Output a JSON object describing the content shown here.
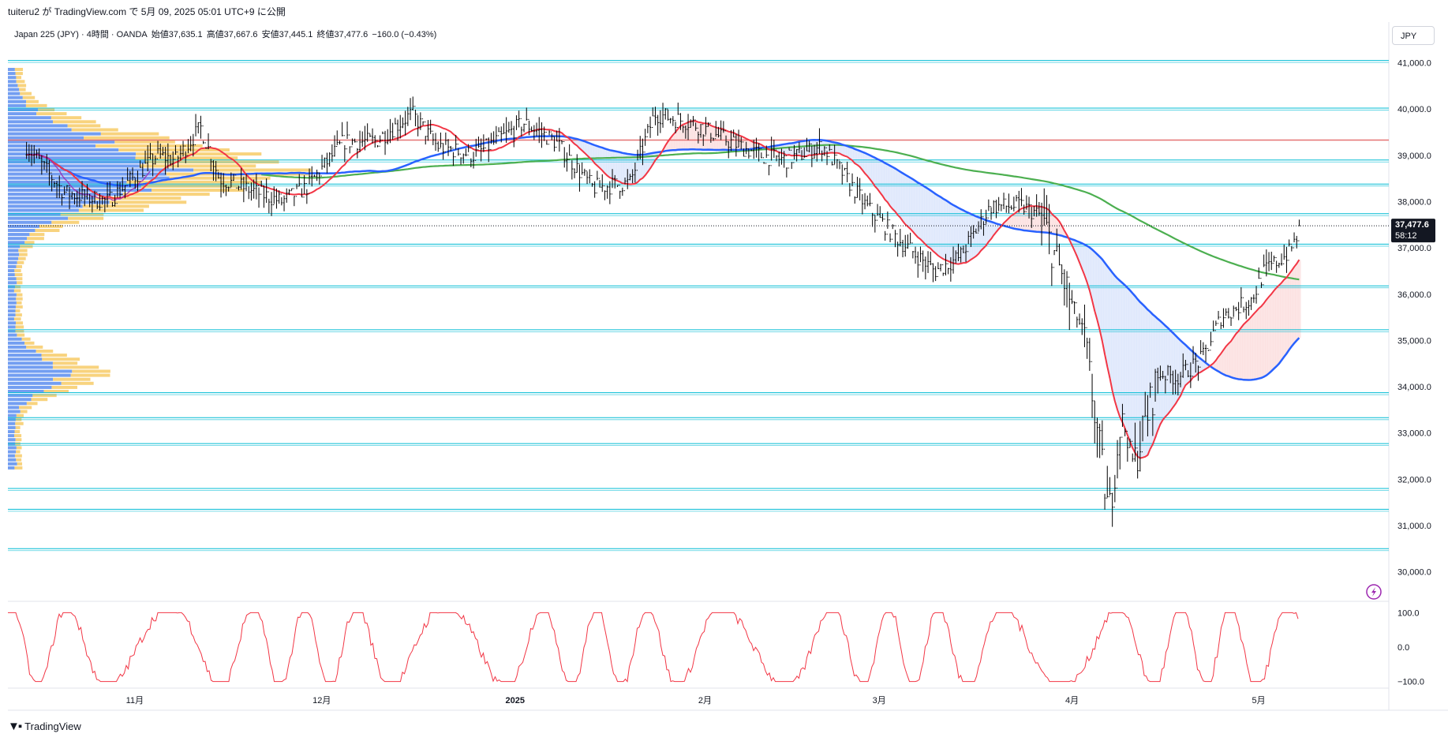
{
  "header": {
    "publish_line": "tuiteru2 が TradingView.com で 5月 09, 2025 05:01 UTC+9 に公開"
  },
  "symbol_line": {
    "name": "Japan 225 (JPY) · 4時間 · OANDA",
    "open": "始値37,635.1",
    "high": "高値37,667.6",
    "low": "安値37,445.1",
    "close": "終値37,477.6",
    "change": "−160.0 (−0.43%)"
  },
  "currency_button": "JPY",
  "price_axis": {
    "ticks": [
      "41,000.0",
      "40,000.0",
      "39,000.0",
      "38,000.0",
      "37,000.0",
      "36,000.0",
      "35,000.0",
      "34,000.0",
      "33,000.0",
      "32,000.0",
      "31,000.0",
      "30,000.0"
    ],
    "last_price_label": "37,477.6",
    "countdown_label": "58:12"
  },
  "oscillator_axis": {
    "ticks": [
      "100.0",
      "0.0",
      "−100.0"
    ]
  },
  "time_axis": {
    "ticks": [
      "11月",
      "12月",
      "2025",
      "2月",
      "3月",
      "4月",
      "5月"
    ]
  },
  "branding": "TradingView",
  "colors": {
    "candle": "#000000",
    "ma_red": "#f23645",
    "ma_blue": "#2962ff",
    "ma_green": "#4caf50",
    "ma_purple": "#9c27b0",
    "hline_cyan": "#00bcd4",
    "resistance_red": "#e57373",
    "volume_profile_blue": "#5b8def",
    "volume_profile_yellow": "#f6c453",
    "oscillator": "#f23645",
    "cloud_blue": "#d7e3fb",
    "cloud_red": "#fbdada"
  },
  "chart_data": {
    "type": "line",
    "symbol": "Japan 225 (JPY)",
    "timeframe": "4時間",
    "ylim": [
      29600,
      41300
    ],
    "horizontal_levels": [
      41050,
      40020,
      39330,
      38900,
      38380,
      37740,
      37080,
      36180,
      35230,
      33870,
      33330,
      32770,
      31800,
      31350,
      30500
    ],
    "resistance_level": 39330,
    "price_path": {
      "x": [
        "2024-10-15",
        "2024-10-21",
        "2024-10-28",
        "2024-11-05",
        "2024-11-08",
        "2024-11-12",
        "2024-11-15",
        "2024-11-19",
        "2024-11-25",
        "2024-11-29",
        "2024-12-05",
        "2024-12-10",
        "2024-12-16",
        "2024-12-20",
        "2024-12-26",
        "2025-01-03",
        "2025-01-08",
        "2025-01-14",
        "2025-01-20",
        "2025-01-24",
        "2025-01-30",
        "2025-02-05",
        "2025-02-10",
        "2025-02-14",
        "2025-02-20",
        "2025-02-27",
        "2025-03-04",
        "2025-03-10",
        "2025-03-14",
        "2025-03-19",
        "2025-03-24",
        "2025-03-27",
        "2025-04-01",
        "2025-04-03",
        "2025-04-07",
        "2025-04-09",
        "2025-04-11",
        "2025-04-15",
        "2025-04-18",
        "2025-04-22",
        "2025-04-25",
        "2025-04-30",
        "2025-05-02",
        "2025-05-06",
        "2025-05-08"
      ],
      "close": [
        39200,
        38200,
        38000,
        39000,
        38900,
        39600,
        38500,
        38300,
        38000,
        38300,
        39300,
        39300,
        39900,
        39200,
        39000,
        39700,
        39300,
        38300,
        38400,
        39900,
        39700,
        39300,
        39000,
        38900,
        39200,
        37900,
        37200,
        36500,
        36800,
        37900,
        37900,
        37700,
        35800,
        35100,
        31200,
        33400,
        32300,
        34300,
        34200,
        34600,
        35500,
        35900,
        36500,
        36900,
        37478
      ]
    },
    "series": [
      {
        "name": "",
        "color": "#f23645"
      },
      {
        "name": "",
        "color": "#2962ff"
      },
      {
        "name": "",
        "color": "#4caf50"
      }
    ],
    "oscillator": {
      "ylim": [
        -110,
        110
      ],
      "ticks": [
        100,
        0,
        -100
      ]
    }
  }
}
